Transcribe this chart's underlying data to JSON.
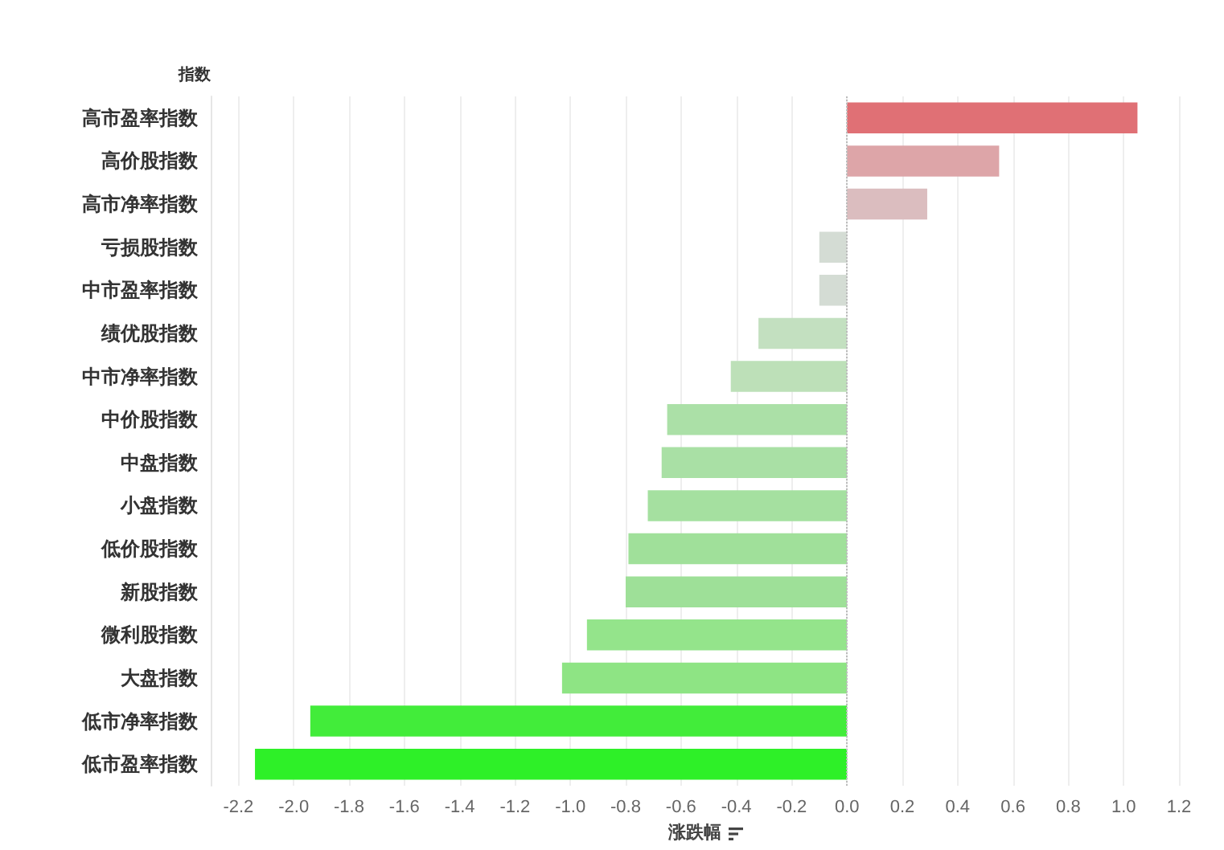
{
  "chart_data": {
    "type": "bar",
    "orientation": "horizontal",
    "xlabel": "涨跌幅",
    "ylabel": "指数",
    "categories": [
      "高市盈率指数",
      "高价股指数",
      "高市净率指数",
      "亏损股指数",
      "中市盈率指数",
      "绩优股指数",
      "中市净率指数",
      "中价股指数",
      "中盘指数",
      "小盘指数",
      "低价股指数",
      "新股指数",
      "微利股指数",
      "大盘指数",
      "低市净率指数",
      "低市盈率指数"
    ],
    "values": [
      1.05,
      0.55,
      0.29,
      -0.1,
      -0.1,
      -0.32,
      -0.42,
      -0.65,
      -0.67,
      -0.72,
      -0.79,
      -0.8,
      -0.94,
      -1.03,
      -1.94,
      -2.14
    ],
    "colors": [
      "#e07075",
      "#dda5a8",
      "#dbbdbf",
      "#d4dcd4",
      "#d4dcd4",
      "#c3e0c0",
      "#bde0b8",
      "#abe0a7",
      "#a9e0a5",
      "#a5e0a0",
      "#a0e09a",
      "#9ee098",
      "#94e48b",
      "#8ee484",
      "#42ec3a",
      "#2ef028"
    ],
    "xlim": [
      -2.3,
      1.2
    ],
    "xticks": [
      -2.2,
      {
        "value": -2.0,
        "label": "-2.0"
      },
      -1.8,
      -1.6,
      -1.4,
      -1.2,
      {
        "value": -1.0,
        "label": "-1.0"
      },
      -0.8,
      -0.6,
      -0.4,
      -0.2,
      {
        "value": 0,
        "label": "0.0"
      },
      0.2,
      0.4,
      0.6,
      0.8,
      {
        "value": 1.0,
        "label": "1.0"
      },
      1.2
    ],
    "ref_lines": [
      {
        "axis": "x",
        "value": 0,
        "line_style": "dotted",
        "color": "#bbbbbb"
      }
    ],
    "grid": "x"
  }
}
